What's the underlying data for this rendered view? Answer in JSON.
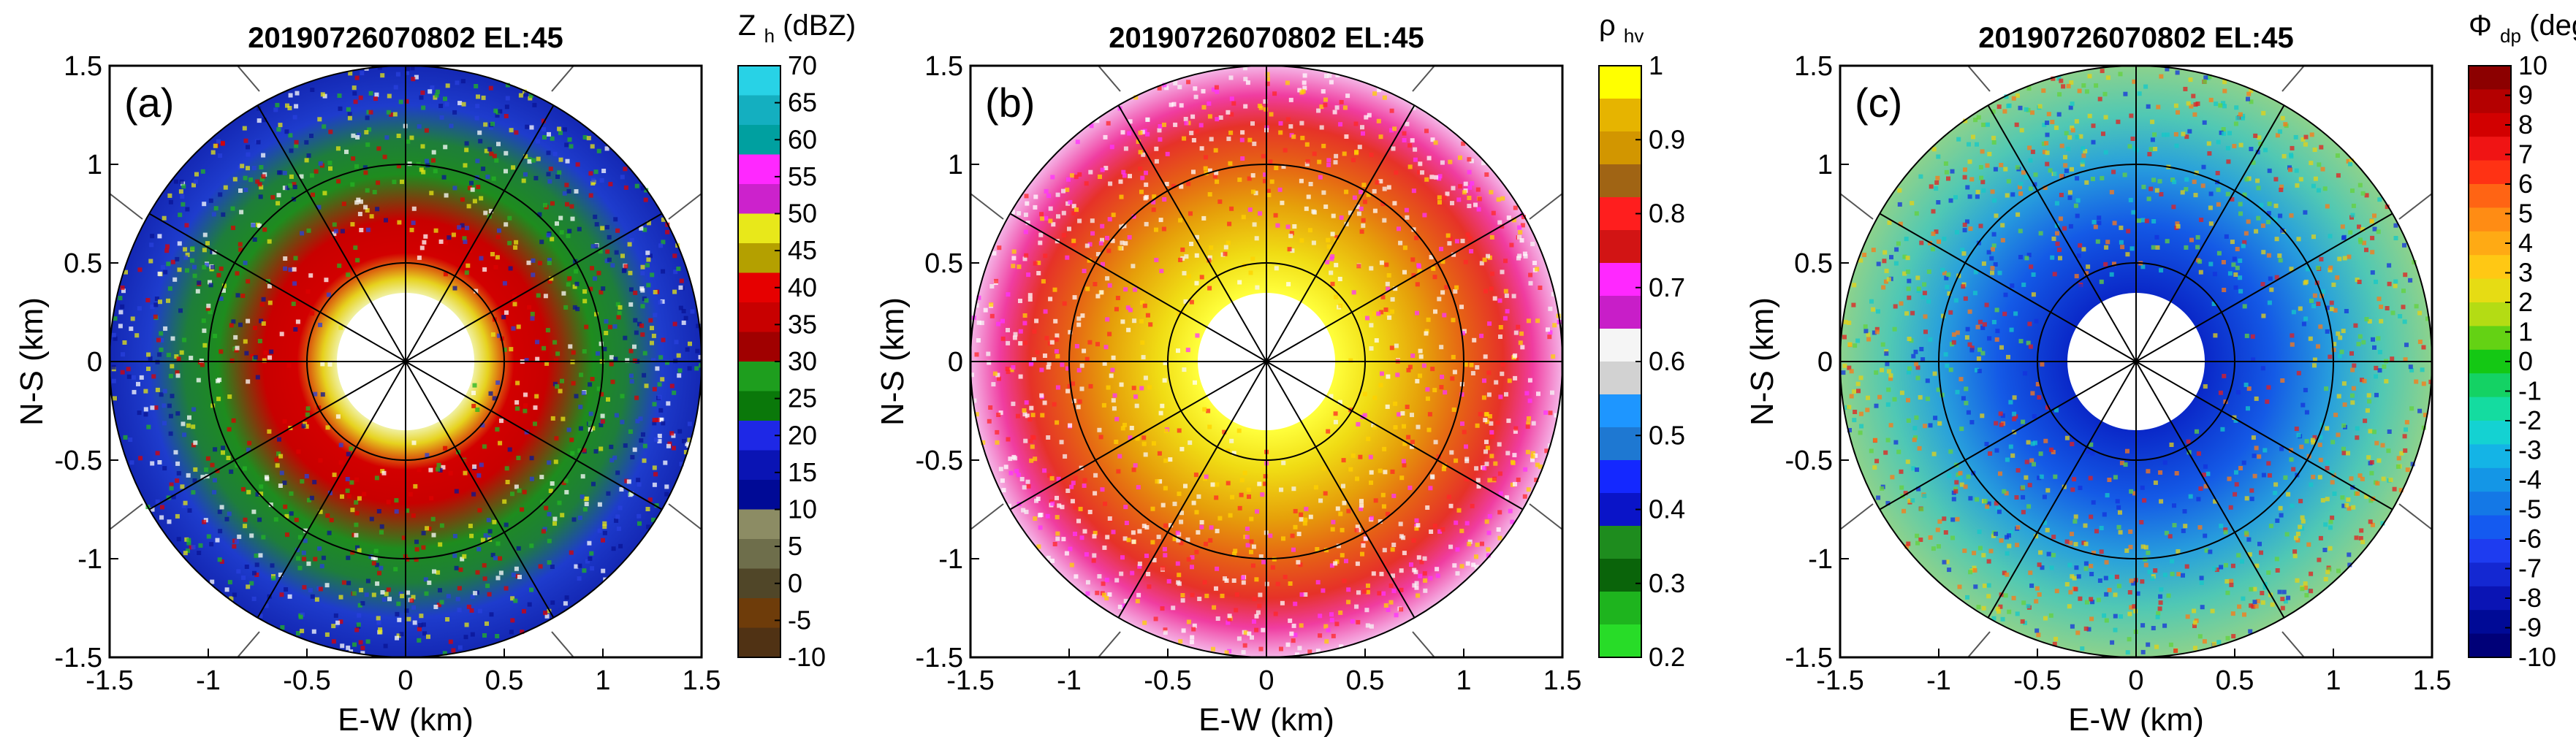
{
  "chart_data": [
    {
      "type": "heatmap",
      "subtype": "radar-ppi",
      "panel_label": "(a)",
      "title": "20190726070802 EL:45",
      "xlabel": "E-W (km)",
      "ylabel": "N-S (km)",
      "xlim": [
        -1.5,
        1.5
      ],
      "ylim": [
        -1.5,
        1.5
      ],
      "xticks": [
        "-1.5",
        "-1",
        "-0.5",
        "0",
        "0.5",
        "1",
        "1.5"
      ],
      "yticks": [
        "-1.5",
        "-1",
        "-0.5",
        "0",
        "0.5",
        "1",
        "1.5"
      ],
      "colorbar": {
        "title_main": "Z",
        "title_sub": "h",
        "title_rest": "(dBZ)",
        "ticks": [
          "70",
          "65",
          "60",
          "55",
          "50",
          "45",
          "40",
          "35",
          "30",
          "25",
          "20",
          "15",
          "10",
          "5",
          "0",
          "-5",
          "-10"
        ],
        "colors": [
          "#28d2e6",
          "#14afc0",
          "#00a0a0",
          "#ff28ff",
          "#cc22cc",
          "#e8e81a",
          "#b4a000",
          "#e60000",
          "#c80000",
          "#a00000",
          "#1e9e1e",
          "#0a780a",
          "#1e28e6",
          "#0a14b4",
          "#000a96",
          "#8c8c64",
          "#6e6e4b",
          "#504628",
          "#6e3c0a",
          "#503214"
        ]
      },
      "rings_km": [
        0.5,
        1.0
      ],
      "spoke_step_deg": 30,
      "blank_center_km": 0.35,
      "field": {
        "profile": [
          {
            "r": 0.35,
            "color": "#f0f0a0"
          },
          {
            "r": 0.42,
            "color": "#e6d21e"
          },
          {
            "r": 0.55,
            "color": "#d20000"
          },
          {
            "r": 0.72,
            "color": "#c80000"
          },
          {
            "r": 0.95,
            "color": "#1e8c1e"
          },
          {
            "r": 1.12,
            "color": "#1e7e3a"
          },
          {
            "r": 1.3,
            "color": "#1e3ccd"
          },
          {
            "r": 1.5,
            "color": "#1428b4"
          }
        ],
        "speckle": [
          "#ffffff",
          "#e6e614",
          "#dc0000",
          "#23b423",
          "#2840dc",
          "#0a1496"
        ],
        "seed": 11
      }
    },
    {
      "type": "heatmap",
      "subtype": "radar-ppi",
      "panel_label": "(b)",
      "title": "20190726070802 EL:45",
      "xlabel": "E-W (km)",
      "ylabel": "N-S (km)",
      "xlim": [
        -1.5,
        1.5
      ],
      "ylim": [
        -1.5,
        1.5
      ],
      "xticks": [
        "-1.5",
        "-1",
        "-0.5",
        "0",
        "0.5",
        "1",
        "1.5"
      ],
      "yticks": [
        "-1.5",
        "-1",
        "-0.5",
        "0",
        "0.5",
        "1",
        "1.5"
      ],
      "colorbar": {
        "title_main": "ρ",
        "title_sub": "hv",
        "title_rest": "",
        "ticks": [
          "1",
          "0.9",
          "0.8",
          "0.7",
          "0.6",
          "0.5",
          "0.4",
          "0.3",
          "0.2"
        ],
        "colors": [
          "#ffff00",
          "#e6b400",
          "#d29600",
          "#a06414",
          "#ff1e1e",
          "#d21414",
          "#ff28ff",
          "#c81ec8",
          "#f5f5f5",
          "#d2d2d2",
          "#1e96ff",
          "#1e78d2",
          "#1428ff",
          "#0a14c8",
          "#1e8c1e",
          "#0a640a",
          "#1eb41e",
          "#28dc28"
        ]
      },
      "rings_km": [
        0.5,
        1.0
      ],
      "spoke_step_deg": 30,
      "blank_center_km": 0.35,
      "field": {
        "profile": [
          {
            "r": 0.35,
            "color": "#ffff3c"
          },
          {
            "r": 0.55,
            "color": "#f0dc14"
          },
          {
            "r": 0.8,
            "color": "#e6a00a"
          },
          {
            "r": 1.0,
            "color": "#e66414"
          },
          {
            "r": 1.2,
            "color": "#e63228"
          },
          {
            "r": 1.35,
            "color": "#f03ca0"
          },
          {
            "r": 1.5,
            "color": "#f5b4e6"
          }
        ],
        "speckle": [
          "#ffffff",
          "#ff32ff",
          "#ff2828",
          "#ffd200",
          "#f5f5f5"
        ],
        "seed": 23
      }
    },
    {
      "type": "heatmap",
      "subtype": "radar-ppi",
      "panel_label": "(c)",
      "title": "20190726070802 EL:45",
      "xlabel": "E-W (km)",
      "ylabel": "N-S (km)",
      "xlim": [
        -1.5,
        1.5
      ],
      "ylim": [
        -1.5,
        1.5
      ],
      "xticks": [
        "-1.5",
        "-1",
        "-0.5",
        "0",
        "0.5",
        "1",
        "1.5"
      ],
      "yticks": [
        "-1.5",
        "-1",
        "-0.5",
        "0",
        "0.5",
        "1",
        "1.5"
      ],
      "colorbar": {
        "title_main": "Φ",
        "title_sub": "dp",
        "title_rest": "(deg)",
        "ticks": [
          "10",
          "9",
          "8",
          "7",
          "6",
          "5",
          "4",
          "3",
          "2",
          "1",
          "0",
          "-1",
          "-2",
          "-3",
          "-4",
          "-5",
          "-6",
          "-7",
          "-8",
          "-9",
          "-10"
        ],
        "colors": [
          "#8c0000",
          "#b40000",
          "#d20000",
          "#f01414",
          "#ff3214",
          "#ff6414",
          "#ff8c14",
          "#ffaa14",
          "#ffc814",
          "#e6dc14",
          "#b4dc14",
          "#64d214",
          "#14c814",
          "#14d264",
          "#14dca0",
          "#14d2d2",
          "#14b4e6",
          "#1496e6",
          "#1478e6",
          "#145af0",
          "#1e3cf0",
          "#1428d2",
          "#0a14b4",
          "#000a96",
          "#000078"
        ]
      },
      "rings_km": [
        0.5,
        1.0
      ],
      "spoke_step_deg": 30,
      "blank_center_km": 0.35,
      "field": {
        "profile": [
          {
            "r": 0.35,
            "color": "#0a28c8"
          },
          {
            "r": 0.7,
            "color": "#145ae6"
          },
          {
            "r": 1.0,
            "color": "#28a0dc"
          },
          {
            "r": 1.25,
            "color": "#50c8b4"
          },
          {
            "r": 1.5,
            "color": "#8cd28c"
          }
        ],
        "speckle": [
          "#e6d214",
          "#ff7814",
          "#14c8c8",
          "#1432dc",
          "#64d23c",
          "#e61e1e"
        ],
        "seed": 37
      }
    }
  ]
}
